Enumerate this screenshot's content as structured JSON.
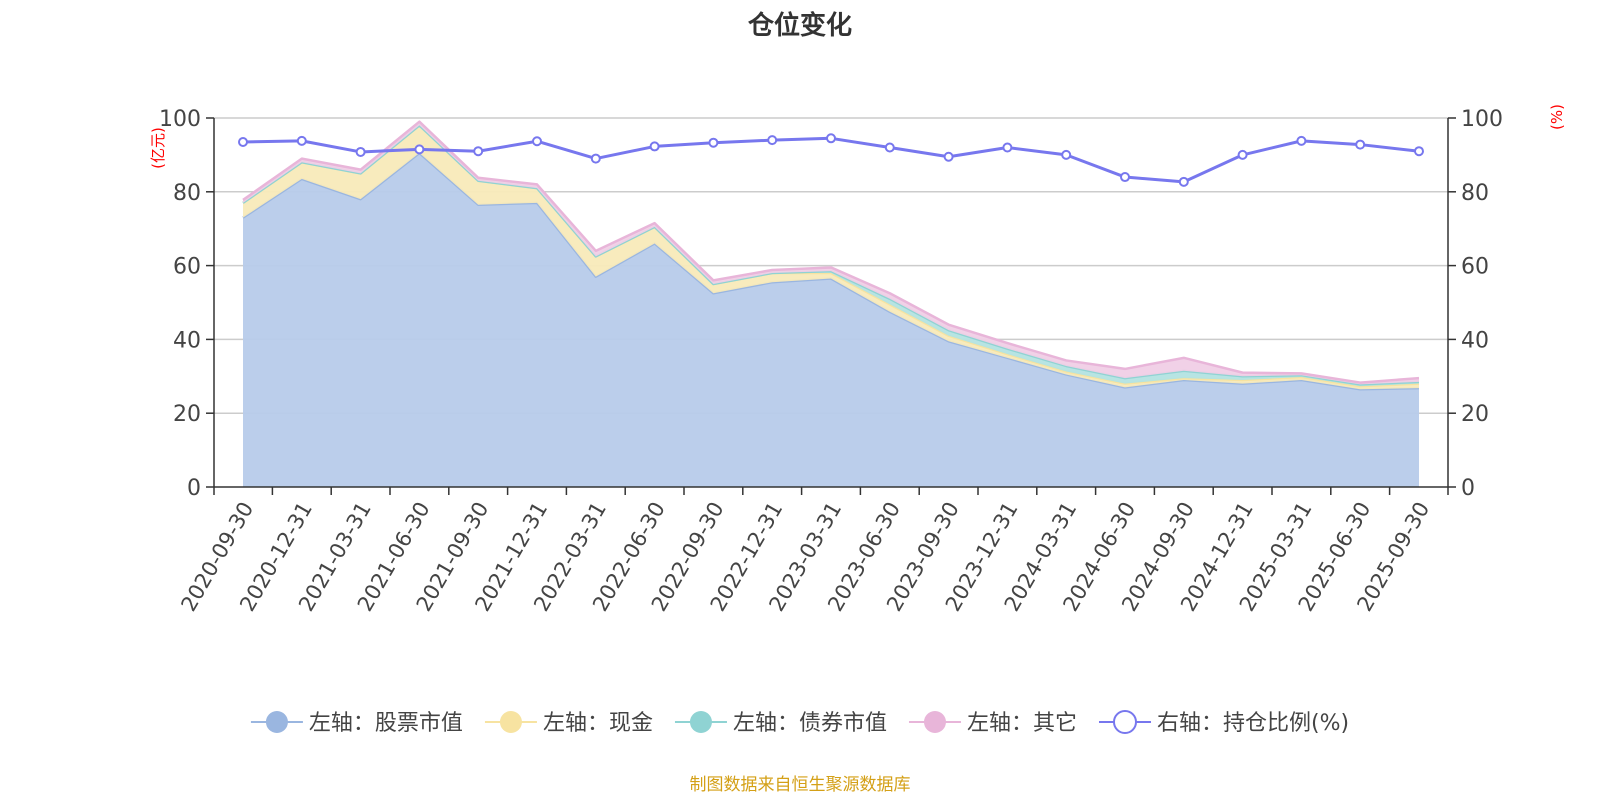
{
  "chart_data": {
    "type": "area",
    "title": "仓位变化",
    "left_axis_label": "(亿元)",
    "right_axis_label": "(%)",
    "ylim_left": [
      0,
      100
    ],
    "ylim_right": [
      0,
      100
    ],
    "left_ticks": [
      "0",
      "20",
      "40",
      "60",
      "80",
      "100"
    ],
    "right_ticks": [
      "0",
      "20",
      "40",
      "60",
      "80",
      "100"
    ],
    "categories": [
      "2020-09-30",
      "2020-12-31",
      "2021-03-31",
      "2021-06-30",
      "2021-09-30",
      "2021-12-31",
      "2022-03-31",
      "2022-06-30",
      "2022-09-30",
      "2022-12-31",
      "2023-03-31",
      "2023-06-30",
      "2023-09-30",
      "2023-12-31",
      "2024-03-31",
      "2024-06-30",
      "2024-09-30",
      "2024-12-31",
      "2025-03-31",
      "2025-06-30",
      "2025-09-30"
    ],
    "series": [
      {
        "name": "左轴：股票市值",
        "axis": "left",
        "kind": "area",
        "color": "#9ab6e0",
        "fill": "#b7cbea",
        "values": [
          73.0,
          83.5,
          78.0,
          90.5,
          76.5,
          77.0,
          57.0,
          66.0,
          52.5,
          55.5,
          56.5,
          47.5,
          39.5,
          35.0,
          30.5,
          27.0,
          29.0,
          28.0,
          29.0,
          26.5,
          26.8
        ]
      },
      {
        "name": "左轴：现金",
        "axis": "left",
        "kind": "area",
        "color": "#f7e3a1",
        "fill": "#f8eab9",
        "values": [
          4.0,
          4.5,
          7.0,
          7.5,
          6.5,
          4.0,
          5.5,
          4.5,
          2.5,
          2.5,
          1.5,
          2.0,
          1.5,
          1.0,
          0.8,
          1.0,
          0.5,
          1.0,
          0.8,
          0.8,
          1.2
        ]
      },
      {
        "name": "左轴：债券市值",
        "axis": "left",
        "kind": "area",
        "color": "#8fd3d3",
        "fill": "#b3e3e1",
        "values": [
          0,
          0,
          0,
          0,
          0,
          0,
          0,
          0,
          0,
          0,
          0.5,
          1.5,
          1.5,
          1.5,
          1.5,
          1.5,
          2.0,
          1.0,
          0.5,
          0.5,
          0.5
        ]
      },
      {
        "name": "左轴：其它",
        "axis": "left",
        "kind": "area",
        "color": "#e8b5d9",
        "fill": "#f0cfe6",
        "values": [
          0.8,
          1.0,
          1.0,
          1.0,
          0.8,
          1.0,
          1.5,
          1.0,
          1.0,
          0.8,
          1.0,
          1.5,
          1.5,
          1.5,
          1.5,
          2.5,
          3.5,
          1.0,
          0.5,
          0.5,
          1.0
        ]
      },
      {
        "name": "右轴：持仓比例(%)",
        "axis": "right",
        "kind": "line",
        "color": "#7777ee",
        "values": [
          93.5,
          93.8,
          90.8,
          91.5,
          91.0,
          93.7,
          89.0,
          92.3,
          93.3,
          94.0,
          94.5,
          92.0,
          89.5,
          92.0,
          90.0,
          84.0,
          82.7,
          90.0,
          93.8,
          92.8,
          91.0
        ]
      }
    ],
    "source_note": "制图数据来自恒生聚源数据库",
    "colors": {
      "axis": "#333333",
      "grid": "#cccccc",
      "axis_title": "#ff0000",
      "title": "#333333",
      "source": "#d4a017",
      "tick_text": "#444444",
      "legend_text": "#444444"
    }
  }
}
